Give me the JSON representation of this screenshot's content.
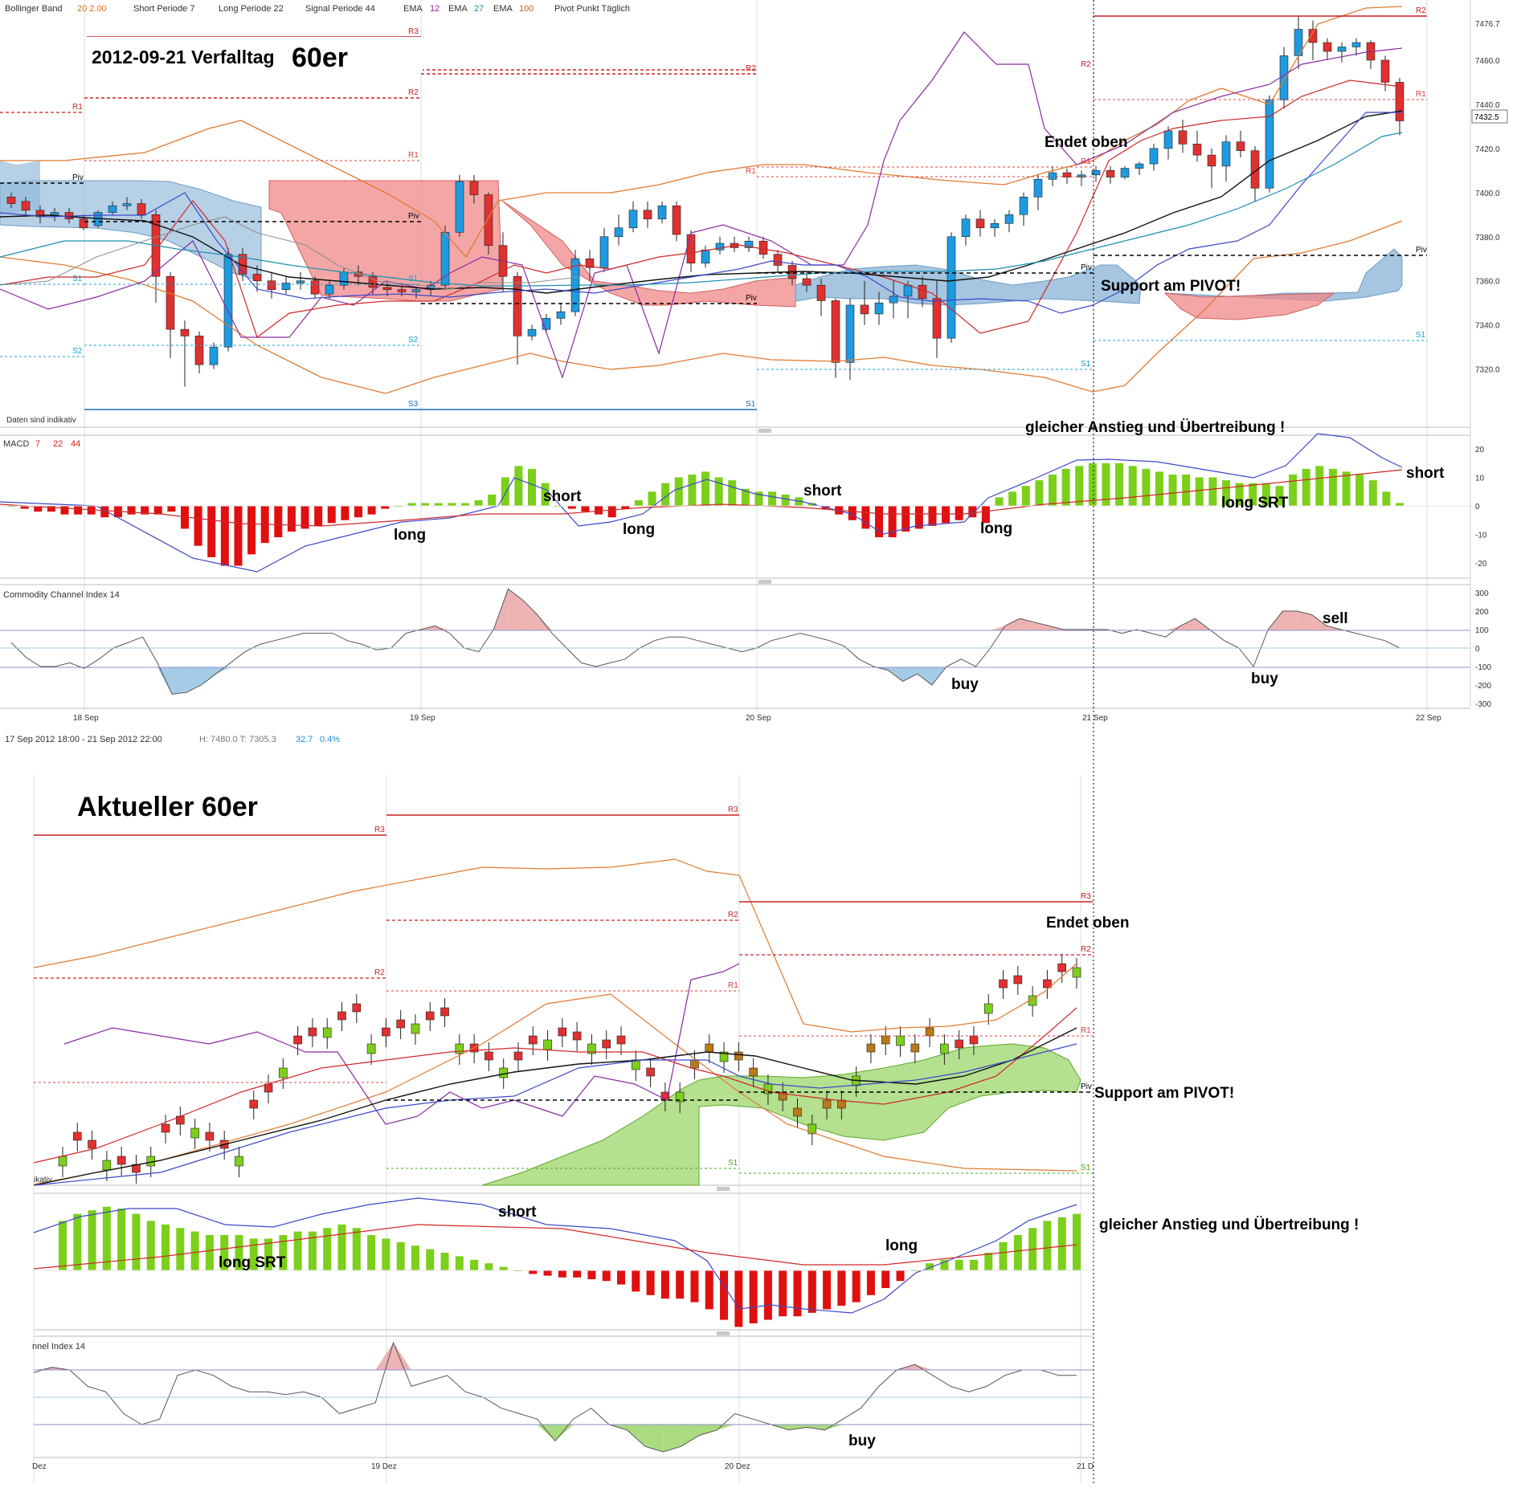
{
  "header": {
    "bollinger": "Bollinger Band",
    "bollinger_vals": "20  2.00",
    "short": "Short Periode  7",
    "long": "Long Periode  22",
    "signal": "Signal Periode  44",
    "ema1_label": "EMA",
    "ema1": "12",
    "ema2_label": "EMA",
    "ema2": "27",
    "ema3_label": "EMA",
    "ema3": "100",
    "pivot": "Pivot Punkt  Täglich"
  },
  "top_title": {
    "date": "2012-09-21 Verfalltag",
    "big": "60er"
  },
  "bottom_title": "Aktueller 60er",
  "daten_note": "Daten sind indikativ",
  "status_bar": {
    "range": "17 Sep 2012 18:00    -    21 Sep 2012 22:00",
    "hl": "H: 7480.0   T: 7305.3",
    "chg": "32.7",
    "pct": "0.4%"
  },
  "price_box": "7432.5",
  "macd_label": {
    "name": "MACD",
    "p1": "7",
    "p2": "22",
    "p3": "44"
  },
  "cci_label": "Commodity Channel Index  14",
  "cci_label_bottom": "nnel Index  14",
  "bottom_frag": "ikativ",
  "colors": {
    "bull_top": "#1e9be0",
    "bear": "#e03030",
    "bull_bottom": "#7ccf1a",
    "bear_bottom": "#b87a18",
    "macd_pos": "#7ccf1a",
    "macd_neg": "#e01010"
  },
  "pivot_labels": {
    "R1": "R1",
    "R2": "R2",
    "R3": "R3",
    "S1": "S1",
    "S2": "S2",
    "S3": "S3",
    "Piv": "Piv"
  },
  "annotations_top": {
    "endet_oben": "Endet oben",
    "support": "Support am PIVOT!",
    "anstieg": "gleicher Anstieg und Übertreibung !",
    "short1": "short",
    "short2": "short",
    "short3": "short",
    "long1": "long",
    "long2": "long",
    "long3": "long",
    "long_srt": "long SRT",
    "sell": "sell",
    "buy1": "buy",
    "buy2": "buy"
  },
  "annotations_bottom": {
    "endet_oben": "Endet oben",
    "support": "Support am PIVOT!",
    "anstieg": "gleicher Anstieg und Übertreibung !",
    "short": "short",
    "long": "long",
    "long_srt": "long SRT",
    "buy": "buy"
  },
  "chart_data": [
    {
      "type": "candlestick",
      "title": "2012-09-21 Verfalltag 60er",
      "x_ticks": [
        "18 Sep",
        "19 Sep",
        "20 Sep",
        "21 Sep",
        "22 Sep"
      ],
      "ylim": [
        7305.3,
        7480.0
      ],
      "y_ticks": [
        7476.7,
        7460.0,
        7440.0,
        7420.0,
        7400.0,
        7380.0,
        7360.0,
        7340.0,
        7320.0
      ],
      "last_price": 7432.5,
      "ohlc": [
        [
          7398,
          7400,
          7393,
          7395
        ],
        [
          7396,
          7398,
          7389,
          7392
        ],
        [
          7392,
          7394,
          7386,
          7389
        ],
        [
          7390,
          7393,
          7387,
          7391
        ],
        [
          7391,
          7393,
          7386,
          7388
        ],
        [
          7388,
          7390,
          7383,
          7384
        ],
        [
          7385,
          7392,
          7384,
          7391
        ],
        [
          7391,
          7396,
          7390,
          7394
        ],
        [
          7394,
          7398,
          7392,
          7395
        ],
        [
          7395,
          7397,
          7388,
          7390
        ],
        [
          7390,
          7392,
          7350,
          7362
        ],
        [
          7362,
          7364,
          7325,
          7338
        ],
        [
          7338,
          7342,
          7312,
          7335
        ],
        [
          7335,
          7337,
          7318,
          7322
        ],
        [
          7322,
          7332,
          7320,
          7330
        ],
        [
          7330,
          7375,
          7328,
          7372
        ],
        [
          7372,
          7375,
          7360,
          7363
        ],
        [
          7363,
          7367,
          7355,
          7360
        ],
        [
          7360,
          7364,
          7352,
          7356
        ],
        [
          7356,
          7362,
          7354,
          7359
        ],
        [
          7359,
          7364,
          7356,
          7360
        ],
        [
          7360,
          7362,
          7352,
          7354
        ],
        [
          7354,
          7360,
          7352,
          7358
        ],
        [
          7358,
          7366,
          7356,
          7364
        ],
        [
          7364,
          7367,
          7358,
          7362
        ],
        [
          7362,
          7364,
          7354,
          7357
        ],
        [
          7357,
          7359,
          7353,
          7356
        ],
        [
          7356,
          7358,
          7353,
          7355
        ],
        [
          7355,
          7357,
          7352,
          7356
        ],
        [
          7356,
          7360,
          7353,
          7358
        ],
        [
          7358,
          7385,
          7356,
          7382
        ],
        [
          7382,
          7408,
          7380,
          7405
        ],
        [
          7405,
          7408,
          7395,
          7399
        ],
        [
          7399,
          7400,
          7372,
          7376
        ],
        [
          7376,
          7382,
          7355,
          7362
        ],
        [
          7362,
          7364,
          7322,
          7335
        ],
        [
          7335,
          7340,
          7333,
          7338
        ],
        [
          7338,
          7345,
          7336,
          7343
        ],
        [
          7343,
          7350,
          7340,
          7346
        ],
        [
          7346,
          7374,
          7344,
          7370
        ],
        [
          7370,
          7374,
          7360,
          7366
        ],
        [
          7366,
          7384,
          7364,
          7380
        ],
        [
          7380,
          7390,
          7376,
          7384
        ],
        [
          7384,
          7396,
          7382,
          7392
        ],
        [
          7392,
          7396,
          7384,
          7388
        ],
        [
          7388,
          7396,
          7386,
          7394
        ],
        [
          7394,
          7396,
          7378,
          7381
        ],
        [
          7381,
          7383,
          7364,
          7368
        ],
        [
          7368,
          7376,
          7366,
          7374
        ],
        [
          7374,
          7380,
          7372,
          7377
        ],
        [
          7377,
          7380,
          7373,
          7375
        ],
        [
          7375,
          7380,
          7373,
          7378
        ],
        [
          7378,
          7380,
          7370,
          7372
        ],
        [
          7372,
          7374,
          7364,
          7367
        ],
        [
          7367,
          7369,
          7358,
          7361
        ],
        [
          7361,
          7364,
          7355,
          7358
        ],
        [
          7358,
          7361,
          7344,
          7351
        ],
        [
          7351,
          7352,
          7316,
          7323
        ],
        [
          7323,
          7352,
          7315,
          7349
        ],
        [
          7349,
          7360,
          7340,
          7345
        ],
        [
          7345,
          7355,
          7340,
          7350
        ],
        [
          7350,
          7360,
          7343,
          7353
        ],
        [
          7353,
          7360,
          7343,
          7358
        ],
        [
          7358,
          7362,
          7348,
          7352
        ],
        [
          7352,
          7360,
          7325,
          7334
        ],
        [
          7334,
          7382,
          7332,
          7380
        ],
        [
          7380,
          7390,
          7376,
          7388
        ],
        [
          7388,
          7392,
          7380,
          7384
        ],
        [
          7384,
          7388,
          7380,
          7386
        ],
        [
          7386,
          7392,
          7382,
          7390
        ],
        [
          7390,
          7400,
          7385,
          7398
        ],
        [
          7398,
          7408,
          7392,
          7406
        ],
        [
          7406,
          7412,
          7403,
          7409
        ],
        [
          7409,
          7411,
          7404,
          7407
        ],
        [
          7407,
          7410,
          7403,
          7408
        ],
        [
          7408,
          7412,
          7405,
          7410
        ],
        [
          7410,
          7412,
          7404,
          7407
        ],
        [
          7407,
          7412,
          7406,
          7411
        ],
        [
          7411,
          7414,
          7408,
          7413
        ],
        [
          7413,
          7422,
          7410,
          7420
        ],
        [
          7420,
          7430,
          7415,
          7428
        ],
        [
          7428,
          7433,
          7418,
          7422
        ],
        [
          7422,
          7428,
          7414,
          7417
        ],
        [
          7417,
          7420,
          7402,
          7412
        ],
        [
          7412,
          7426,
          7405,
          7423
        ],
        [
          7423,
          7428,
          7416,
          7419
        ],
        [
          7419,
          7421,
          7396,
          7402
        ],
        [
          7402,
          7444,
          7400,
          7442
        ],
        [
          7442,
          7466,
          7438,
          7462
        ],
        [
          7462,
          7480,
          7456,
          7474
        ],
        [
          7474,
          7478,
          7460,
          7468
        ],
        [
          7468,
          7470,
          7460,
          7464
        ],
        [
          7464,
          7468,
          7459,
          7466
        ],
        [
          7466,
          7470,
          7462,
          7468
        ],
        [
          7468,
          7469,
          7456,
          7460
        ],
        [
          7460,
          7462,
          7446,
          7450
        ],
        [
          7450,
          7452,
          7426,
          7432.5
        ]
      ],
      "pivot_levels_21sep": {
        "R2": 7476.0,
        "R1": 7440.0,
        "Piv": 7375.0,
        "S1": 7340.0
      }
    },
    {
      "type": "bar",
      "title": "MACD 7 22 44",
      "ylim": [
        -25,
        25
      ],
      "y_ticks": [
        20,
        10,
        0,
        -10,
        -20
      ],
      "values": [
        0,
        -1,
        -2,
        -2,
        -3,
        -3,
        -3,
        -4,
        -4,
        -3,
        -3,
        -3,
        -2,
        -8,
        -14,
        -18,
        -21,
        -21,
        -17,
        -13,
        -11,
        -9,
        -8,
        -7,
        -6,
        -5,
        -4,
        -3,
        -1,
        0,
        1,
        1,
        1,
        1,
        1,
        2,
        4,
        10,
        14,
        13,
        8,
        0,
        -1,
        -2,
        -3,
        -4,
        -1,
        2,
        5,
        8,
        10,
        11,
        12,
        10,
        9,
        6,
        5,
        5,
        4,
        3,
        1,
        -1,
        -3,
        -5,
        -8,
        -11,
        -11,
        -9,
        -8,
        -7,
        -6,
        -5,
        -4,
        -6,
        3,
        5,
        7,
        9,
        11,
        13,
        14,
        15,
        15,
        15,
        14,
        13,
        12,
        11,
        11,
        10,
        10,
        9,
        8,
        8,
        8,
        7,
        11,
        13,
        14,
        13,
        12,
        11,
        9,
        5,
        1
      ]
    },
    {
      "type": "line",
      "title": "Commodity Channel Index 14",
      "ylim": [
        -300,
        300
      ],
      "y_ticks": [
        300,
        200,
        100,
        0,
        -100,
        -200,
        -300
      ],
      "values": [
        30,
        -50,
        -100,
        -100,
        -80,
        -110,
        -60,
        0,
        30,
        60,
        -80,
        -250,
        -240,
        -200,
        -140,
        -80,
        -20,
        20,
        40,
        60,
        80,
        80,
        80,
        40,
        20,
        -10,
        0,
        80,
        100,
        120,
        80,
        0,
        -20,
        100,
        320,
        260,
        180,
        80,
        0,
        -80,
        -100,
        -80,
        -60,
        0,
        40,
        60,
        60,
        40,
        20,
        0,
        -20,
        0,
        40,
        60,
        80,
        60,
        40,
        10,
        -60,
        -100,
        -120,
        -180,
        -140,
        -200,
        -100,
        -60,
        -100,
        0,
        120,
        160,
        140,
        120,
        100,
        100,
        100,
        100,
        80,
        100,
        80,
        60,
        120,
        160,
        100,
        40,
        0,
        -100,
        100,
        200,
        200,
        180,
        120,
        100,
        80,
        60,
        40,
        0
      ]
    },
    {
      "type": "candlestick",
      "title": "Aktueller 60er",
      "x_ticks": [
        "Dez",
        "19 Dez",
        "20 Dez",
        "21 D"
      ],
      "note": "second chart (Dec 2012), same indicators; green bullish / brown bearish candles"
    }
  ]
}
